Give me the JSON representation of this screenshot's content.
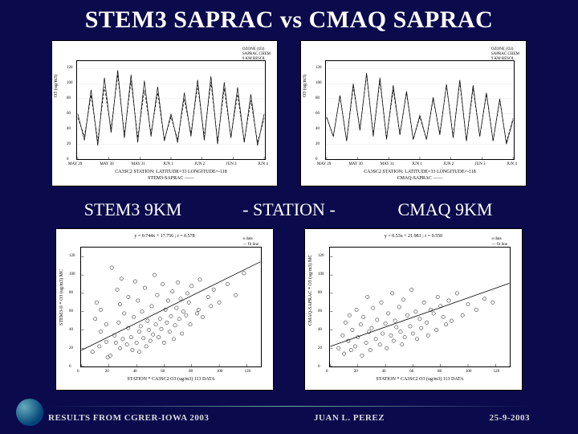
{
  "title": "STEM3 SAPRAC vs CMAQ SAPRAC",
  "mid": {
    "left": "STEM3 9KM",
    "center": "-  STATION  -",
    "right": "CMAQ 9KM"
  },
  "footer": {
    "left": "RESULTS FROM CGRER-IOWA 2003",
    "center": "JUAN L. PEREZ",
    "right": "25-9-2003"
  },
  "ts_common": {
    "type": "line",
    "plot_bg": "#ffffff",
    "ylim": [
      0,
      130
    ],
    "xtick_labels": [
      "MAY 29",
      "MAY 30",
      "MAY 31",
      "JUN 1",
      "JUN 2",
      "JUN 3",
      "JUN 4"
    ],
    "xaxis_label": "CA3SC2  STATION: LATITUDE=33 LONGITUDE=-118",
    "yaxis_label": "O3 (ug/m3)",
    "line_color": "#000000",
    "line_width": 0.7,
    "series_note": {
      "lines": [
        "OZONE (O3)",
        "SAPRAC CHEM",
        "9 KM RESOL"
      ]
    },
    "grid_color": "#dddddd"
  },
  "ts1": {
    "legend": "STEM3-SAPRAC ——",
    "series": [
      {
        "label": "model",
        "dash": "solid",
        "y": [
          60,
          25,
          92,
          18,
          108,
          35,
          118,
          28,
          112,
          22,
          104,
          30,
          96,
          24,
          60,
          22,
          88,
          30,
          105,
          25,
          110,
          20,
          102,
          28,
          95,
          22,
          86,
          18,
          60
        ]
      },
      {
        "label": "station",
        "dash": "dashed",
        "y": [
          55,
          30,
          85,
          24,
          96,
          40,
          112,
          32,
          104,
          28,
          92,
          34,
          88,
          26,
          56,
          26,
          80,
          34,
          98,
          30,
          102,
          24,
          94,
          30,
          86,
          24,
          78,
          22,
          54
        ]
      }
    ]
  },
  "ts2": {
    "legend": "CMAQ-SAPRAC ——",
    "series": [
      {
        "label": "model",
        "dash": "solid",
        "y": [
          56,
          30,
          84,
          24,
          100,
          38,
          114,
          30,
          108,
          26,
          98,
          32,
          90,
          26,
          58,
          26,
          82,
          32,
          99,
          28,
          105,
          24,
          98,
          30,
          88,
          24,
          80,
          20,
          52
        ]
      },
      {
        "label": "station",
        "dash": "dashed",
        "y": [
          55,
          30,
          85,
          24,
          96,
          40,
          112,
          32,
          104,
          28,
          92,
          34,
          88,
          26,
          56,
          26,
          80,
          34,
          98,
          30,
          102,
          24,
          94,
          30,
          86,
          24,
          78,
          22,
          54
        ]
      }
    ]
  },
  "sc_common": {
    "type": "scatter",
    "marker": "circle",
    "marker_size": 2.2,
    "marker_color": "none",
    "marker_edge": "#000000",
    "fit_line_color": "#000000",
    "fit_line_width": 0.8,
    "xlim": [
      0,
      130
    ],
    "ylim": [
      0,
      130
    ],
    "xtick_step": 20,
    "ytick_step": 20,
    "xaxis_label": "STATION * CA3SC2 O3 (ug/m3)",
    "legend": {
      "lines": [
        "o  data",
        "—  fit line"
      ]
    }
  },
  "sc1": {
    "title": "y = 0.744x + 17.756  ;  r = 0.578",
    "yaxis_label": "STEM3-II * O3 (ug/m3) MC",
    "fit": {
      "slope": 0.744,
      "intercept": 17.756
    },
    "points": [
      [
        8,
        16
      ],
      [
        10,
        52
      ],
      [
        11,
        70
      ],
      [
        13,
        22
      ],
      [
        14,
        38
      ],
      [
        14,
        62
      ],
      [
        18,
        27
      ],
      [
        18,
        46
      ],
      [
        19,
        10
      ],
      [
        21,
        12
      ],
      [
        22,
        108
      ],
      [
        24,
        34
      ],
      [
        25,
        26
      ],
      [
        26,
        84
      ],
      [
        27,
        48
      ],
      [
        28,
        68
      ],
      [
        28,
        20
      ],
      [
        29,
        96
      ],
      [
        30,
        30
      ],
      [
        31,
        58
      ],
      [
        33,
        24
      ],
      [
        34,
        42
      ],
      [
        34,
        76
      ],
      [
        36,
        32
      ],
      [
        37,
        18
      ],
      [
        38,
        54
      ],
      [
        39,
        93
      ],
      [
        40,
        26
      ],
      [
        41,
        72
      ],
      [
        42,
        38
      ],
      [
        42,
        16
      ],
      [
        43,
        44
      ],
      [
        44,
        60
      ],
      [
        45,
        31
      ],
      [
        46,
        86
      ],
      [
        47,
        22
      ],
      [
        48,
        50
      ],
      [
        49,
        40
      ],
      [
        50,
        28
      ],
      [
        51,
        66
      ],
      [
        52,
        35
      ],
      [
        53,
        100
      ],
      [
        54,
        46
      ],
      [
        55,
        78
      ],
      [
        56,
        32
      ],
      [
        57,
        52
      ],
      [
        58,
        41
      ],
      [
        59,
        90
      ],
      [
        60,
        26
      ],
      [
        61,
        62
      ],
      [
        62,
        48
      ],
      [
        63,
        72
      ],
      [
        64,
        38
      ],
      [
        65,
        55
      ],
      [
        66,
        82
      ],
      [
        67,
        30
      ],
      [
        68,
        45
      ],
      [
        69,
        64
      ],
      [
        70,
        92
      ],
      [
        71,
        52
      ],
      [
        72,
        74
      ],
      [
        73,
        36
      ],
      [
        74,
        60
      ],
      [
        76,
        56
      ],
      [
        77,
        80
      ],
      [
        78,
        70
      ],
      [
        79,
        46
      ],
      [
        80,
        88
      ],
      [
        84,
        58
      ],
      [
        85,
        62
      ],
      [
        86,
        95
      ],
      [
        88,
        54
      ],
      [
        92,
        76
      ],
      [
        94,
        66
      ],
      [
        96,
        84
      ],
      [
        100,
        70
      ],
      [
        106,
        90
      ],
      [
        112,
        78
      ],
      [
        118,
        102
      ]
    ]
  },
  "sc2": {
    "title": "y = 0.53x + 21.981  ;  r = 0.550",
    "yaxis_label": "CMAQ-SAPRAC * O3 (ug/m3) MC",
    "fit": {
      "slope": 0.53,
      "intercept": 21.981
    },
    "points": [
      [
        6,
        20
      ],
      [
        9,
        34
      ],
      [
        10,
        14
      ],
      [
        11,
        48
      ],
      [
        13,
        28
      ],
      [
        14,
        56
      ],
      [
        15,
        18
      ],
      [
        16,
        40
      ],
      [
        18,
        22
      ],
      [
        19,
        62
      ],
      [
        20,
        32
      ],
      [
        22,
        46
      ],
      [
        23,
        12
      ],
      [
        24,
        54
      ],
      [
        26,
        26
      ],
      [
        27,
        76
      ],
      [
        28,
        38
      ],
      [
        29,
        18
      ],
      [
        30,
        42
      ],
      [
        31,
        64
      ],
      [
        33,
        30
      ],
      [
        34,
        51
      ],
      [
        36,
        24
      ],
      [
        37,
        70
      ],
      [
        38,
        36
      ],
      [
        40,
        47
      ],
      [
        41,
        20
      ],
      [
        42,
        58
      ],
      [
        44,
        34
      ],
      [
        45,
        80
      ],
      [
        46,
        28
      ],
      [
        47,
        50
      ],
      [
        48,
        43
      ],
      [
        50,
        65
      ],
      [
        51,
        38
      ],
      [
        52,
        24
      ],
      [
        53,
        73
      ],
      [
        54,
        32
      ],
      [
        56,
        56
      ],
      [
        58,
        44
      ],
      [
        59,
        84
      ],
      [
        60,
        36
      ],
      [
        62,
        60
      ],
      [
        63,
        30
      ],
      [
        65,
        52
      ],
      [
        66,
        42
      ],
      [
        68,
        70
      ],
      [
        70,
        48
      ],
      [
        71,
        34
      ],
      [
        73,
        62
      ],
      [
        75,
        58
      ],
      [
        77,
        40
      ],
      [
        78,
        76
      ],
      [
        80,
        66
      ],
      [
        82,
        54
      ],
      [
        84,
        46
      ],
      [
        86,
        72
      ],
      [
        88,
        50
      ],
      [
        92,
        80
      ],
      [
        96,
        56
      ],
      [
        100,
        68
      ],
      [
        106,
        62
      ],
      [
        112,
        74
      ],
      [
        118,
        70
      ]
    ]
  }
}
